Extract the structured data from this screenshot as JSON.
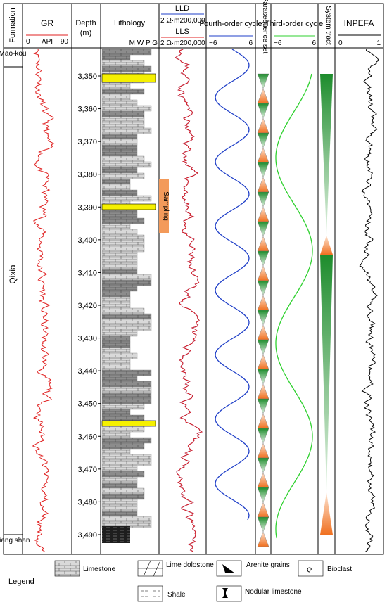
{
  "headers": {
    "formation": "Formation",
    "gr": "GR",
    "gr_unit": "API",
    "gr_min": "0",
    "gr_max": "90",
    "depth": "Depth",
    "depth_unit": "(m)",
    "lithology": "Lithology",
    "texture": "M W P G",
    "lld": "LLD",
    "lld_scale": "2  Ω·m200,000",
    "lls": "LLS",
    "lls_scale": "2  Ω·m200,000",
    "fourth": "Fourth-order cycle",
    "fourth_min": "−6",
    "fourth_max": "6",
    "parasequence": "Parasequence set",
    "third": "Third-order cycle",
    "third_min": "−6",
    "third_max": "6",
    "system_tract": "System tract",
    "inpefa": "INPEFA",
    "inpefa_min": "0",
    "inpefa_max": "1"
  },
  "formations": [
    "Mao-kou",
    "Qixia",
    "Liang shan"
  ],
  "depth_ticks": [
    "3,350",
    "3,360",
    "3,370",
    "3,380",
    "3,390",
    "3,400",
    "3,410",
    "3,420",
    "3,430",
    "3,440",
    "3,450",
    "3,460",
    "3,470",
    "3,480",
    "3,490"
  ],
  "sampling": "Sampling",
  "legend": {
    "title": "Legend",
    "items": [
      "Limestone",
      "Lime dolostone",
      "Arenite grains",
      "Bioclast",
      "Shale",
      "Nodular limestone"
    ]
  }
}
